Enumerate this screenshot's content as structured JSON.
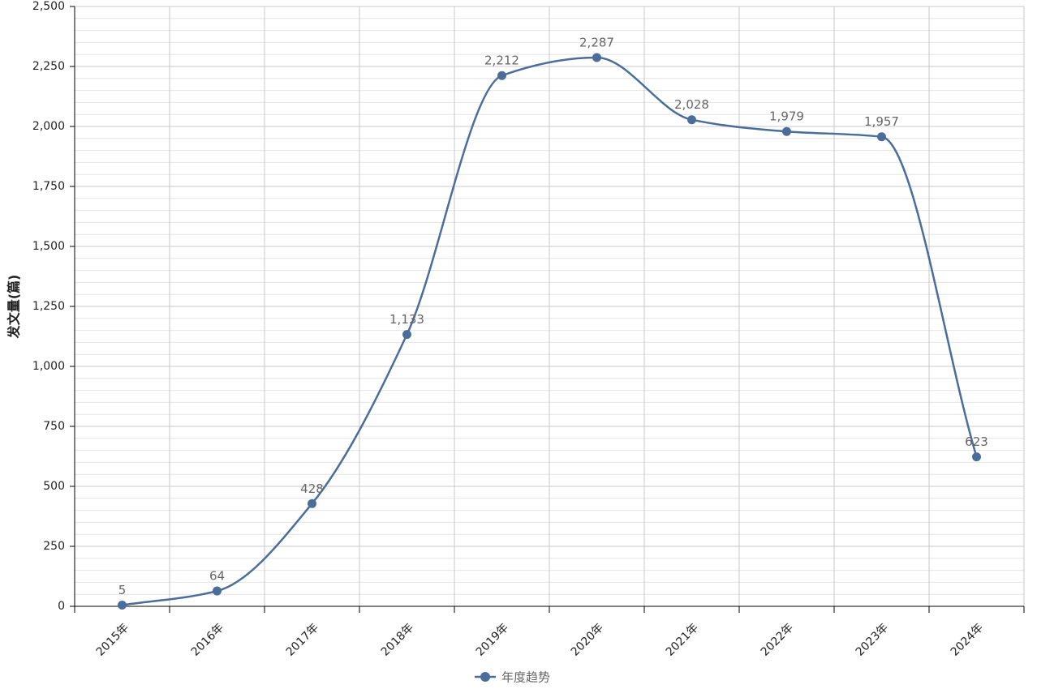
{
  "chart_data": {
    "type": "line",
    "y_label": "发文量(篇)",
    "categories": [
      "2015年",
      "2016年",
      "2017年",
      "2018年",
      "2019年",
      "2020年",
      "2021年",
      "2022年",
      "2023年",
      "2024年"
    ],
    "series": [
      {
        "name": "年度趋势",
        "color": "#4a6d9a",
        "values": [
          5,
          64,
          428,
          1133,
          2212,
          2287,
          2028,
          1979,
          1957,
          623
        ],
        "value_labels": [
          "5",
          "64",
          "428",
          "1,133",
          "2,212",
          "2,287",
          "2,028",
          "1,979",
          "1,957",
          "623"
        ]
      }
    ],
    "ylim": [
      0,
      2500
    ],
    "yticks": [
      0,
      250,
      500,
      750,
      {
        "value": 1000,
        "label": "1,000"
      },
      {
        "value": 1250,
        "label": "1,250"
      },
      {
        "value": 1500,
        "label": "1,500"
      },
      {
        "value": 1750,
        "label": "1,750"
      },
      {
        "value": 2000,
        "label": "2,000"
      },
      {
        "value": 2250,
        "label": "2,250"
      },
      {
        "value": 2500,
        "label": "2,500"
      }
    ],
    "grid": true,
    "legend": "bottom"
  }
}
